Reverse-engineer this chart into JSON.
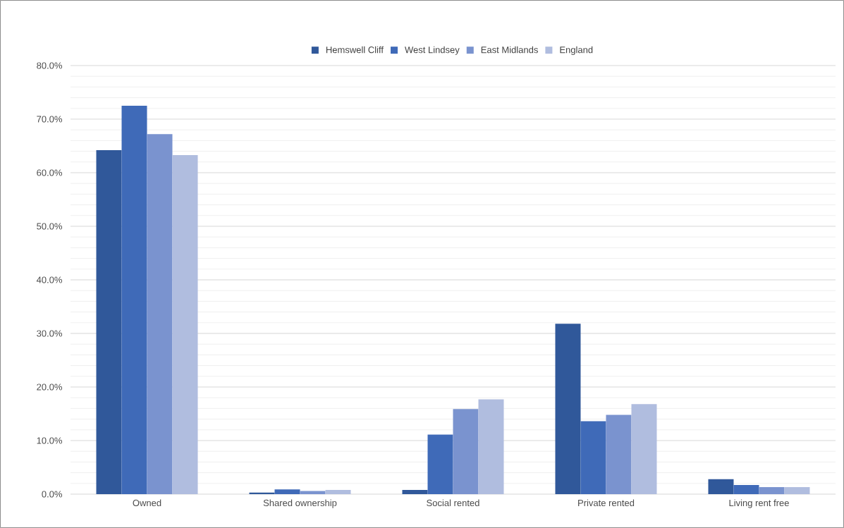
{
  "chart_data": {
    "type": "bar",
    "categories": [
      "Owned",
      "Shared ownership",
      "Social rented",
      "Private rented",
      "Living rent free"
    ],
    "series": [
      {
        "name": "Hemswell Cliff",
        "color": "#30589a",
        "values": [
          64.2,
          0.3,
          0.8,
          31.8,
          2.8
        ]
      },
      {
        "name": "West Lindsey",
        "color": "#3f6ab8",
        "values": [
          72.5,
          0.9,
          11.1,
          13.6,
          1.7
        ]
      },
      {
        "name": "East Midlands",
        "color": "#7a93cf",
        "values": [
          67.2,
          0.6,
          15.9,
          14.8,
          1.3
        ]
      },
      {
        "name": "England",
        "color": "#b0bddf",
        "values": [
          63.3,
          0.8,
          17.7,
          16.8,
          1.3
        ]
      }
    ],
    "ylim": [
      0,
      80
    ],
    "yticks": [
      {
        "value": 0,
        "label": "0.0%"
      },
      {
        "value": 10,
        "label": "10.0%"
      },
      {
        "value": 20,
        "label": "20.0%"
      },
      {
        "value": 30,
        "label": "30.0%"
      },
      {
        "value": 40,
        "label": "40.0%"
      },
      {
        "value": 50,
        "label": "50.0%"
      },
      {
        "value": 60,
        "label": "60.0%"
      },
      {
        "value": 70,
        "label": "70.0%"
      },
      {
        "value": 80,
        "label": "80.0%"
      }
    ],
    "grid": "y",
    "legend": "top"
  }
}
